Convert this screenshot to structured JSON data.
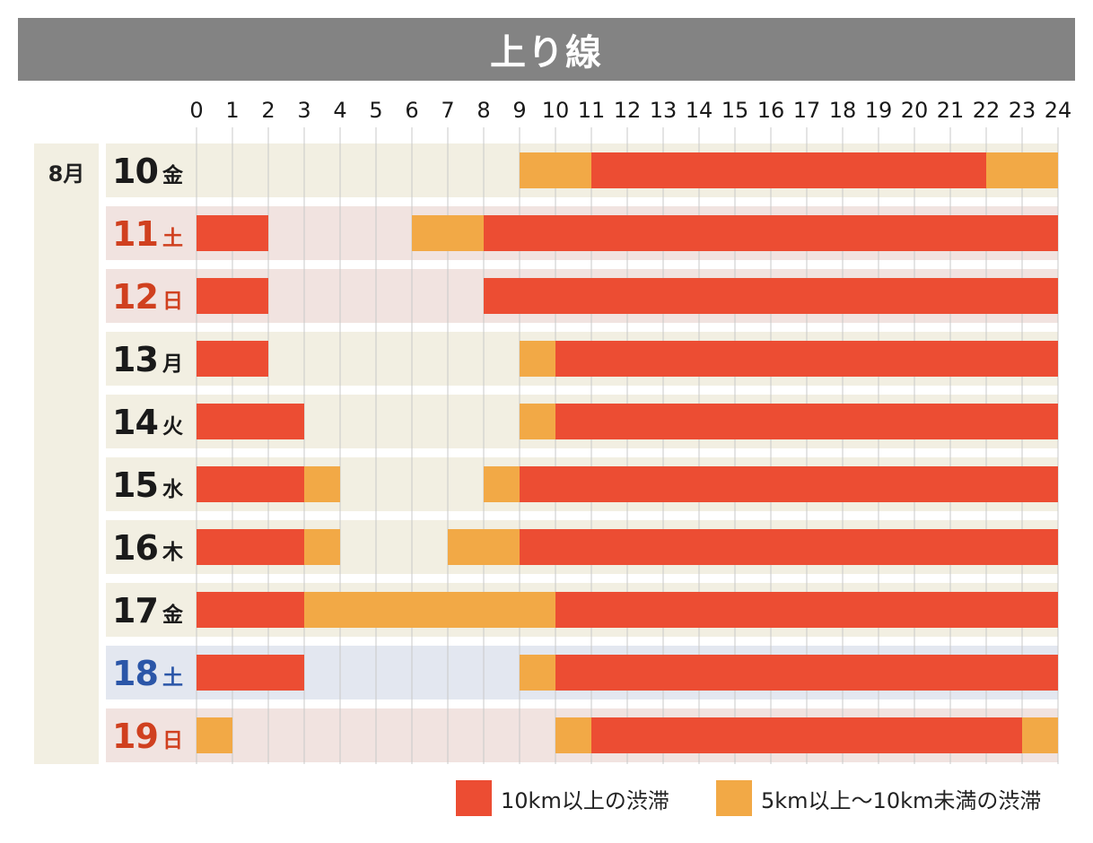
{
  "header": {
    "title": "上り線"
  },
  "month": "8月",
  "colors": {
    "heavy": "#ec4d33",
    "light": "#f2a946",
    "row_weekday": "#f2efe2",
    "row_holiday": "#f1e3e0",
    "row_saturday_blue": "#e3e7f0",
    "label_dark": "#1a1a1a",
    "label_red": "#d0401f",
    "label_blue": "#2b56a8",
    "grid": "#c8c8c8"
  },
  "legend": {
    "heavy_label": "10km以上の渋滞",
    "light_label": "5km以上～10km未満の渋滞"
  },
  "chart_data": {
    "type": "bar",
    "x_axis": {
      "min": 0,
      "max": 24,
      "ticks": [
        0,
        1,
        2,
        3,
        4,
        5,
        6,
        7,
        8,
        9,
        10,
        11,
        12,
        13,
        14,
        15,
        16,
        17,
        18,
        19,
        20,
        21,
        22,
        23,
        24
      ]
    },
    "categories": [
      "10 金",
      "11 土",
      "12 日",
      "13 月",
      "14 火",
      "15 水",
      "16 木",
      "17 金",
      "18 土",
      "19 日"
    ],
    "rows": [
      {
        "day": "10",
        "weekday": "金",
        "style": "weekday",
        "segments": [
          {
            "start": 9,
            "end": 11,
            "level": "light"
          },
          {
            "start": 11,
            "end": 22,
            "level": "heavy"
          },
          {
            "start": 22,
            "end": 24,
            "level": "light"
          }
        ]
      },
      {
        "day": "11",
        "weekday": "土",
        "style": "holiday",
        "segments": [
          {
            "start": 0,
            "end": 2,
            "level": "heavy"
          },
          {
            "start": 6,
            "end": 8,
            "level": "light"
          },
          {
            "start": 8,
            "end": 24,
            "level": "heavy"
          }
        ]
      },
      {
        "day": "12",
        "weekday": "日",
        "style": "holiday",
        "segments": [
          {
            "start": 0,
            "end": 2,
            "level": "heavy"
          },
          {
            "start": 8,
            "end": 24,
            "level": "heavy"
          }
        ]
      },
      {
        "day": "13",
        "weekday": "月",
        "style": "weekday",
        "segments": [
          {
            "start": 0,
            "end": 2,
            "level": "heavy"
          },
          {
            "start": 9,
            "end": 10,
            "level": "light"
          },
          {
            "start": 10,
            "end": 24,
            "level": "heavy"
          }
        ]
      },
      {
        "day": "14",
        "weekday": "火",
        "style": "weekday",
        "segments": [
          {
            "start": 0,
            "end": 3,
            "level": "heavy"
          },
          {
            "start": 9,
            "end": 10,
            "level": "light"
          },
          {
            "start": 10,
            "end": 24,
            "level": "heavy"
          }
        ]
      },
      {
        "day": "15",
        "weekday": "水",
        "style": "weekday",
        "segments": [
          {
            "start": 0,
            "end": 3,
            "level": "heavy"
          },
          {
            "start": 3,
            "end": 4,
            "level": "light"
          },
          {
            "start": 8,
            "end": 9,
            "level": "light"
          },
          {
            "start": 9,
            "end": 24,
            "level": "heavy"
          }
        ]
      },
      {
        "day": "16",
        "weekday": "木",
        "style": "weekday",
        "segments": [
          {
            "start": 0,
            "end": 3,
            "level": "heavy"
          },
          {
            "start": 3,
            "end": 4,
            "level": "light"
          },
          {
            "start": 7,
            "end": 9,
            "level": "light"
          },
          {
            "start": 9,
            "end": 24,
            "level": "heavy"
          }
        ]
      },
      {
        "day": "17",
        "weekday": "金",
        "style": "weekday",
        "segments": [
          {
            "start": 0,
            "end": 3,
            "level": "heavy"
          },
          {
            "start": 3,
            "end": 10,
            "level": "light"
          },
          {
            "start": 10,
            "end": 24,
            "level": "heavy"
          }
        ]
      },
      {
        "day": "18",
        "weekday": "土",
        "style": "saturday_blue",
        "segments": [
          {
            "start": 0,
            "end": 3,
            "level": "heavy"
          },
          {
            "start": 9,
            "end": 10,
            "level": "light"
          },
          {
            "start": 10,
            "end": 24,
            "level": "heavy"
          }
        ]
      },
      {
        "day": "19",
        "weekday": "日",
        "style": "holiday",
        "segments": [
          {
            "start": 0,
            "end": 1,
            "level": "light"
          },
          {
            "start": 10,
            "end": 11,
            "level": "light"
          },
          {
            "start": 11,
            "end": 23,
            "level": "heavy"
          },
          {
            "start": 23,
            "end": 24,
            "level": "light"
          }
        ]
      }
    ]
  }
}
